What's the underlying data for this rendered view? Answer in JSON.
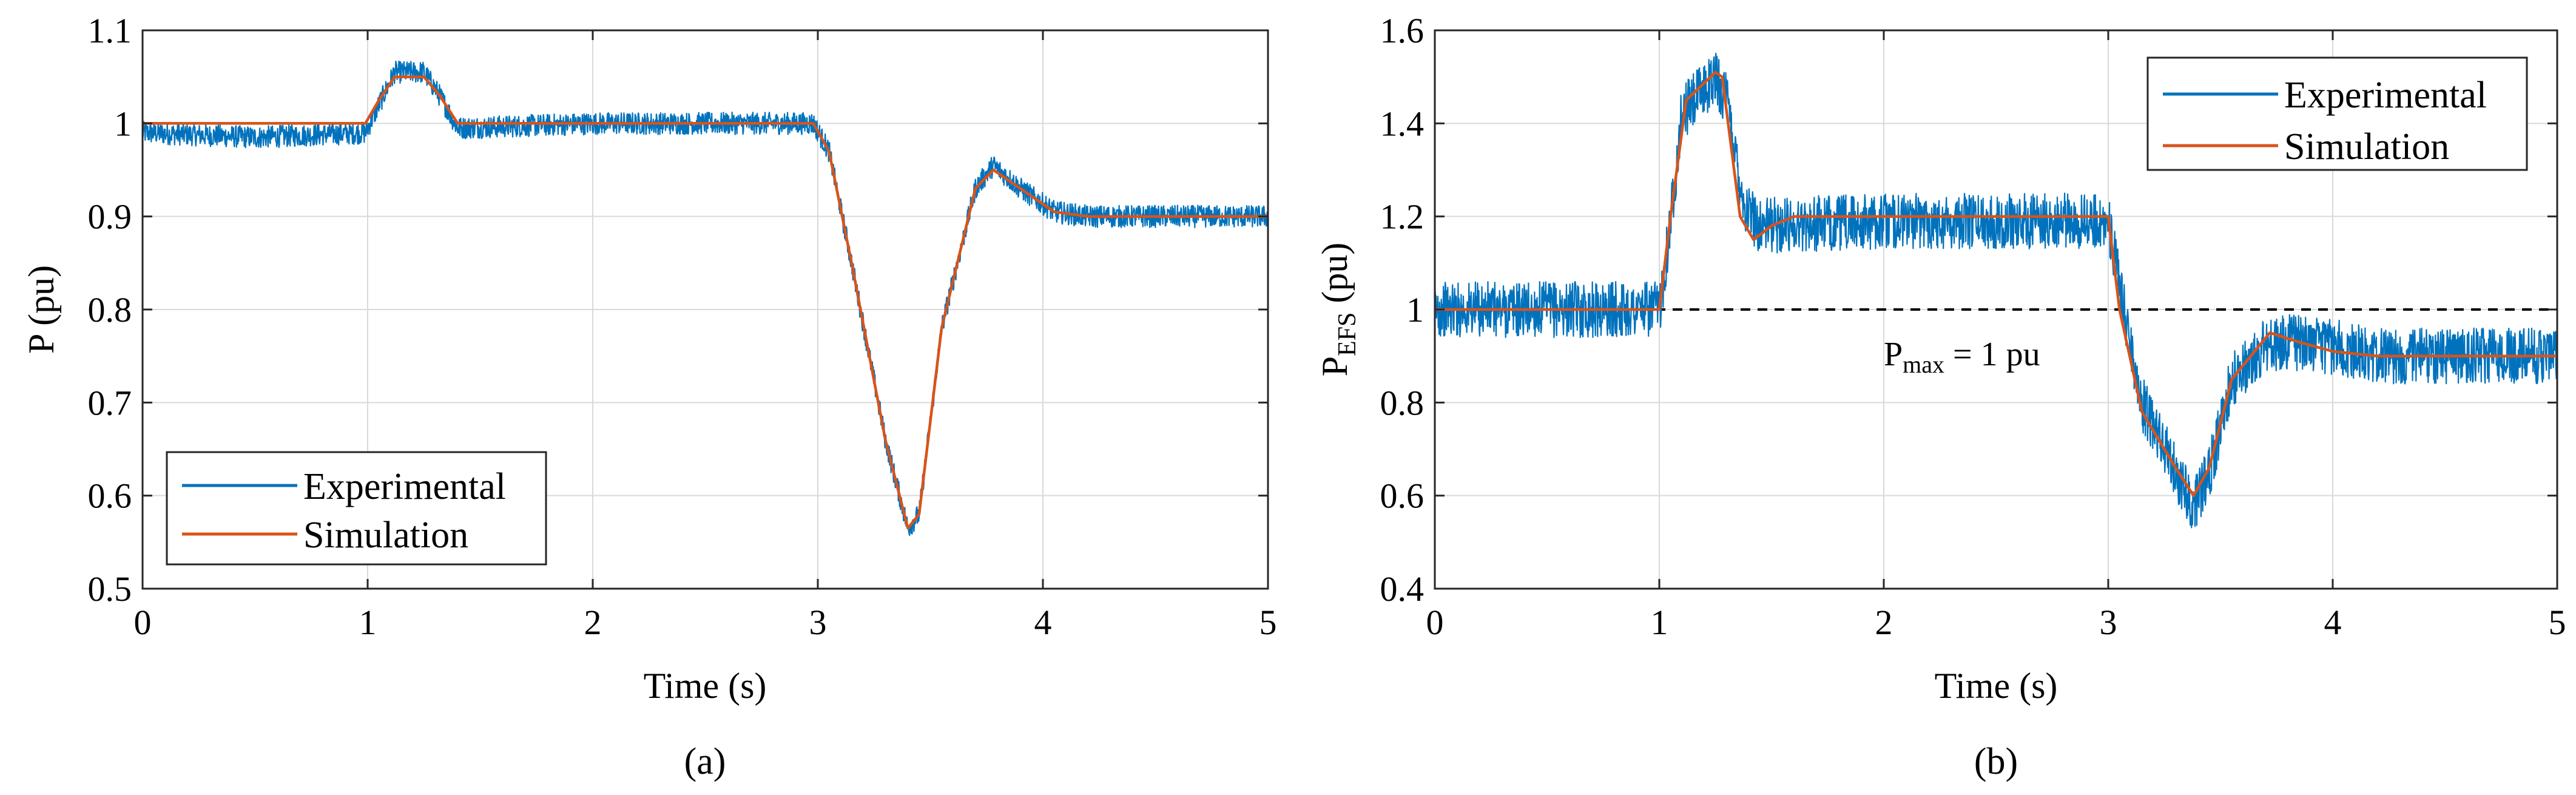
{
  "figure": {
    "panel_labels": [
      "(a)",
      "(b)"
    ]
  },
  "colors": {
    "experimental": "#0072BD",
    "simulation": "#D95319",
    "grid": "#d9d9d9",
    "axes": "#262626"
  },
  "chart_data": [
    {
      "type": "line",
      "panel": "(a)",
      "title": "",
      "xlabel": "Time (s)",
      "ylabel": "P (pu)",
      "xlim": [
        0,
        5
      ],
      "ylim": [
        0.5,
        1.1
      ],
      "xticks": [
        0,
        1,
        2,
        3,
        4,
        5
      ],
      "xtick_labels": [
        "0",
        "1",
        "2",
        "3",
        "4",
        "5"
      ],
      "yticks": [
        0.5,
        0.6,
        0.7,
        0.8,
        0.9,
        1.0,
        1.1
      ],
      "ytick_labels": [
        "0.5",
        "0.6",
        "0.7",
        "0.8",
        "0.9",
        "1",
        "1.1"
      ],
      "grid": true,
      "legend_position": "bottom-left",
      "series": [
        {
          "name": "Experimental",
          "color": "#0072BD",
          "noise_amplitude": 0.012,
          "x": [
            0,
            0.5,
            0.99,
            1.05,
            1.12,
            1.25,
            1.32,
            1.4,
            2.0,
            2.98,
            3.05,
            3.15,
            3.3,
            3.4,
            3.45,
            3.55,
            3.7,
            3.78,
            3.9,
            4.05,
            4.2,
            4.5,
            5.0
          ],
          "y": [
            0.99,
            0.985,
            0.99,
            1.02,
            1.055,
            1.055,
            1.03,
            0.995,
            1.0,
            1.0,
            0.97,
            0.85,
            0.66,
            0.565,
            0.58,
            0.78,
            0.93,
            0.955,
            0.93,
            0.905,
            0.9,
            0.9,
            0.9
          ]
        },
        {
          "name": "Simulation",
          "color": "#D95319",
          "x": [
            0,
            0.99,
            1.05,
            1.12,
            1.25,
            1.32,
            1.4,
            2.0,
            2.98,
            3.05,
            3.15,
            3.3,
            3.4,
            3.45,
            3.55,
            3.7,
            3.78,
            3.9,
            4.05,
            4.2,
            4.5,
            5.0
          ],
          "y": [
            1.0,
            1.0,
            1.025,
            1.05,
            1.05,
            1.03,
            1.0,
            1.0,
            1.0,
            0.97,
            0.85,
            0.66,
            0.565,
            0.58,
            0.78,
            0.93,
            0.95,
            0.93,
            0.905,
            0.9,
            0.9,
            0.9
          ]
        }
      ]
    },
    {
      "type": "line",
      "panel": "(b)",
      "title": "",
      "xlabel": "Time (s)",
      "ylabel_main": "P",
      "ylabel_sub": "EFS",
      "ylabel_unit": " (pu)",
      "xlim": [
        0,
        5
      ],
      "ylim": [
        0.4,
        1.6
      ],
      "xticks": [
        0,
        1,
        2,
        3,
        4,
        5
      ],
      "xtick_labels": [
        "0",
        "1",
        "2",
        "3",
        "4",
        "5"
      ],
      "yticks": [
        0.4,
        0.6,
        0.8,
        1.0,
        1.2,
        1.4,
        1.6
      ],
      "ytick_labels": [
        "0.4",
        "0.6",
        "0.8",
        "1",
        "1.2",
        "1.4",
        "1.6"
      ],
      "grid": true,
      "legend_position": "top-right",
      "annotation": {
        "main": "P",
        "sub": "max",
        "rest": " = 1 pu",
        "x": 2.0,
        "y": 0.88
      },
      "reference_line": {
        "y": 1.0,
        "style": "dashed",
        "color": "#000000"
      },
      "series": [
        {
          "name": "Experimental",
          "color": "#0072BD",
          "noise_amplitude": 0.06,
          "x": [
            0,
            1.0,
            1.04,
            1.1,
            1.25,
            1.3,
            1.38,
            1.45,
            2.0,
            3.0,
            3.05,
            3.15,
            3.3,
            3.38,
            3.45,
            3.55,
            3.7,
            3.8,
            4.0,
            4.2,
            5.0
          ],
          "y": [
            1.0,
            1.0,
            1.15,
            1.42,
            1.5,
            1.45,
            1.22,
            1.18,
            1.19,
            1.19,
            1.05,
            0.8,
            0.65,
            0.58,
            0.65,
            0.85,
            0.92,
            0.93,
            0.92,
            0.9,
            0.9
          ]
        },
        {
          "name": "Simulation",
          "color": "#D95319",
          "x": [
            0,
            1.0,
            1.05,
            1.12,
            1.25,
            1.28,
            1.36,
            1.42,
            1.5,
            1.6,
            3.0,
            3.05,
            3.15,
            3.3,
            3.38,
            3.45,
            3.55,
            3.72,
            3.85,
            4.0,
            4.2,
            5.0
          ],
          "y": [
            1.0,
            1.0,
            1.2,
            1.45,
            1.51,
            1.5,
            1.2,
            1.15,
            1.18,
            1.2,
            1.2,
            1.0,
            0.78,
            0.66,
            0.6,
            0.66,
            0.85,
            0.95,
            0.93,
            0.91,
            0.9,
            0.9
          ]
        }
      ]
    }
  ]
}
